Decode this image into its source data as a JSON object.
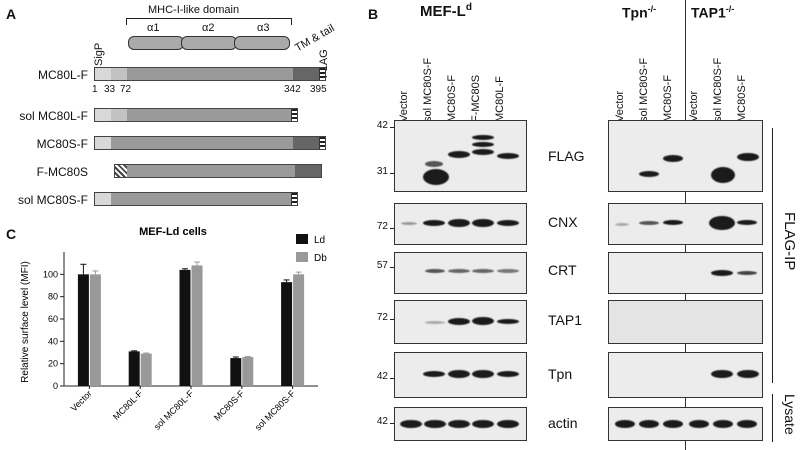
{
  "panels": {
    "a": "A",
    "b": "B",
    "c": "C"
  },
  "panel_a": {
    "domain_label": "MHC-I-like domain",
    "subdomains": [
      "α1",
      "α2",
      "α3"
    ],
    "sigp_label": "SigP",
    "tm_label": "TM & tail",
    "flag_label": "FLAG",
    "positions": [
      "1",
      "33",
      "72",
      "342",
      "395"
    ],
    "constructs": [
      "MC80L-F",
      "sol MC80L-F",
      "MC80S-F",
      "F-MC80S",
      "sol MC80S-F"
    ]
  },
  "panel_b": {
    "group1_title": "MEF-L",
    "group1_sup": "d",
    "group2_title": "Tpn",
    "group2_sup": "-/-",
    "group3_title": "TAP1",
    "group3_sup": "-/-",
    "lanes_g1": [
      "Vector",
      "sol MC80S-F",
      "MC80S-F",
      "F-MC80S",
      "MC80L-F"
    ],
    "lanes_g2": [
      "Vector",
      "sol MC80S-F",
      "MC80S-F"
    ],
    "lanes_g3": [
      "Vector",
      "sol MC80S-F",
      "MC80S-F"
    ],
    "targets": [
      "FLAG",
      "CNX",
      "CRT",
      "TAP1",
      "Tpn",
      "actin"
    ],
    "mw_markers": [
      "42",
      "31",
      "72",
      "57",
      "72",
      "42",
      "42"
    ],
    "side_ip": "FLAG-IP",
    "side_lysate": "Lysate"
  },
  "chart_data": {
    "type": "bar",
    "title": "MEF-Ld cells",
    "ylabel": "Relative surface level (MFI)",
    "xlabel": "",
    "ylim": [
      0,
      120
    ],
    "yticks": [
      0,
      20,
      40,
      60,
      80,
      100
    ],
    "categories": [
      "Vector",
      "MC80L-F",
      "sol MC80L-F",
      "MC80S-F",
      "sol MC80S-F"
    ],
    "series": [
      {
        "name": "Ld",
        "color": "#111111",
        "values": [
          100,
          31,
          104,
          25,
          93
        ],
        "errors": [
          9,
          0.5,
          1,
          1,
          2
        ]
      },
      {
        "name": "Db",
        "color": "#999999",
        "values": [
          100,
          29,
          108,
          26,
          100
        ],
        "errors": [
          3,
          0.5,
          3,
          0.5,
          2
        ]
      }
    ],
    "legend": "top-right",
    "grid": false
  }
}
